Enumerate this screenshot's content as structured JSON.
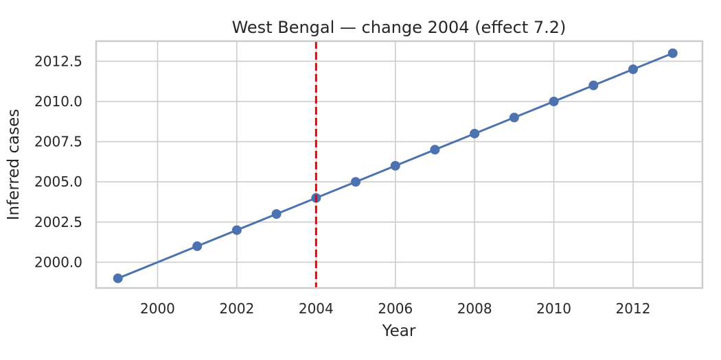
{
  "chart_data": {
    "type": "line",
    "title": "West Bengal — change 2004 (effect 7.2)",
    "xlabel": "Year",
    "ylabel": "Inferred cases",
    "xlim": [
      1998.45,
      2013.75
    ],
    "ylim": [
      1998.4,
      2013.75
    ],
    "xticks": [
      2000,
      2002,
      2004,
      2006,
      2008,
      2010,
      2012
    ],
    "yticks": [
      2000.0,
      2002.5,
      2005.0,
      2007.5,
      2010.0,
      2012.5
    ],
    "grid": true,
    "series": [
      {
        "color": "#4c72b0",
        "marker": "circle",
        "x": [
          1999,
          2001,
          2002,
          2003,
          2004,
          2005,
          2006,
          2007,
          2008,
          2009,
          2010,
          2011,
          2012,
          2013
        ],
        "y": [
          1999,
          2001,
          2002,
          2003,
          2004,
          2005,
          2006,
          2007,
          2008,
          2009,
          2010,
          2011,
          2012,
          2013
        ]
      }
    ],
    "annotations": [
      {
        "type": "vline",
        "x": 2004,
        "color": "#e8000b",
        "style": "dashed"
      }
    ]
  }
}
